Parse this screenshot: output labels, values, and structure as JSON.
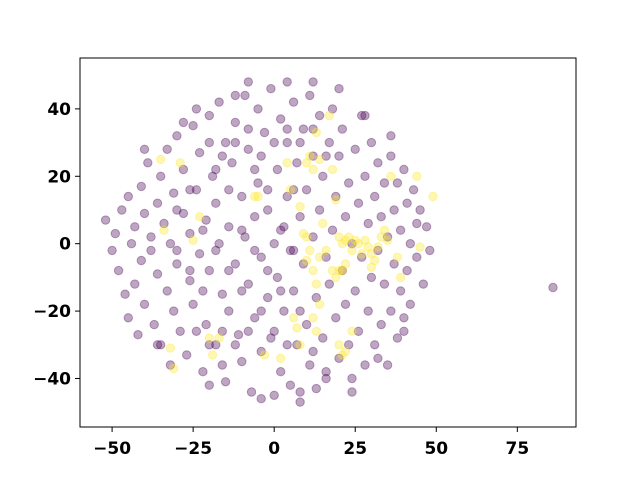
{
  "chart_data": {
    "type": "scatter",
    "title": "",
    "xlabel": "",
    "ylabel": "",
    "xlim": [
      -59.9,
      93.1
    ],
    "ylim": [
      -54.4,
      55.1
    ],
    "x_ticks": [
      -50,
      -25,
      0,
      25,
      50,
      75
    ],
    "y_ticks": [
      -40,
      -20,
      0,
      20,
      40
    ],
    "x_tick_labels": [
      "−50",
      "−25",
      "0",
      "25",
      "50",
      "75"
    ],
    "y_tick_labels": [
      "−40",
      "−20",
      "0",
      "20",
      "40"
    ],
    "grid": false,
    "legend": "none",
    "point_alpha": 0.35,
    "series": [
      {
        "color": "#440154",
        "class": 0,
        "points": [
          [
            -52,
            7
          ],
          [
            -50,
            -2
          ],
          [
            -49,
            3
          ],
          [
            -48,
            -8
          ],
          [
            -47,
            10
          ],
          [
            -46,
            -15
          ],
          [
            -45,
            -22
          ],
          [
            -45,
            14
          ],
          [
            -44,
            0
          ],
          [
            -43,
            5
          ],
          [
            -43,
            -12
          ],
          [
            -42,
            -27
          ],
          [
            -41,
            17
          ],
          [
            -41,
            -5
          ],
          [
            -40,
            9
          ],
          [
            -40,
            -18
          ],
          [
            -39,
            24
          ],
          [
            -38,
            -2
          ],
          [
            -38,
            2
          ],
          [
            -37,
            -24
          ],
          [
            -36,
            12
          ],
          [
            -36,
            -9
          ],
          [
            -35,
            20
          ],
          [
            -35,
            -30
          ],
          [
            -34,
            6
          ],
          [
            -33,
            -14
          ],
          [
            -33,
            28
          ],
          [
            -32,
            0
          ],
          [
            -31,
            -20
          ],
          [
            -31,
            15
          ],
          [
            -30,
            32
          ],
          [
            -30,
            -6
          ],
          [
            -29,
            -26
          ],
          [
            -28,
            9
          ],
          [
            -28,
            22
          ],
          [
            -27,
            -33
          ],
          [
            -26,
            -11
          ],
          [
            -26,
            3
          ],
          [
            -25,
            35
          ],
          [
            -25,
            -18
          ],
          [
            -24,
            16
          ],
          [
            -23,
            -3
          ],
          [
            -23,
            27
          ],
          [
            -22,
            -38
          ],
          [
            -21,
            7
          ],
          [
            -21,
            -24
          ],
          [
            -20,
            38
          ],
          [
            -20,
            -8
          ],
          [
            -19,
            20
          ],
          [
            -18,
            -30
          ],
          [
            -18,
            12
          ],
          [
            -17,
            0
          ],
          [
            -17,
            42
          ],
          [
            -16,
            -15
          ],
          [
            -15,
            30
          ],
          [
            -15,
            -41
          ],
          [
            -14,
            5
          ],
          [
            -14,
            -20
          ],
          [
            -13,
            24
          ],
          [
            -12,
            -6
          ],
          [
            -12,
            36
          ],
          [
            -11,
            -27
          ],
          [
            -10,
            14
          ],
          [
            -10,
            -35
          ],
          [
            -9,
            2
          ],
          [
            -9,
            44
          ],
          [
            -8,
            -12
          ],
          [
            -8,
            28
          ],
          [
            -7,
            -44
          ],
          [
            -6,
            8
          ],
          [
            -6,
            -22
          ],
          [
            -5,
            18
          ],
          [
            -5,
            40
          ],
          [
            -4,
            -4
          ],
          [
            -4,
            -32
          ],
          [
            -3,
            33
          ],
          [
            -2,
            -16
          ],
          [
            -2,
            10
          ],
          [
            -1,
            46
          ],
          [
            -1,
            -28
          ],
          [
            0,
            0
          ],
          [
            0,
            -45
          ],
          [
            1,
            22
          ],
          [
            1,
            -10
          ],
          [
            2,
            37
          ],
          [
            2,
            -38
          ],
          [
            3,
            5
          ],
          [
            3,
            -20
          ],
          [
            4,
            14
          ],
          [
            4,
            30
          ],
          [
            5,
            -2
          ],
          [
            5,
            -42
          ],
          [
            6,
            42
          ],
          [
            6,
            -14
          ],
          [
            7,
            24
          ],
          [
            7,
            -30
          ],
          [
            8,
            8
          ],
          [
            8,
            -47
          ],
          [
            9,
            34
          ],
          [
            9,
            -6
          ],
          [
            10,
            -24
          ],
          [
            10,
            16
          ],
          [
            11,
            44
          ],
          [
            11,
            -36
          ],
          [
            12,
            2
          ],
          [
            12,
            26
          ],
          [
            13,
            -16
          ],
          [
            13,
            -43
          ],
          [
            14,
            38
          ],
          [
            14,
            10
          ],
          [
            15,
            -28
          ],
          [
            15,
            20
          ],
          [
            16,
            -4
          ],
          [
            16,
            -38
          ],
          [
            17,
            30
          ],
          [
            17,
            -12
          ],
          [
            18,
            4
          ],
          [
            18,
            40
          ],
          [
            19,
            -22
          ],
          [
            19,
            14
          ],
          [
            20,
            -34
          ],
          [
            20,
            26
          ],
          [
            21,
            -8
          ],
          [
            21,
            34
          ],
          [
            22,
            -18
          ],
          [
            22,
            8
          ],
          [
            23,
            -30
          ],
          [
            23,
            18
          ],
          [
            24,
            -40
          ],
          [
            24,
            0
          ],
          [
            25,
            28
          ],
          [
            25,
            -14
          ],
          [
            26,
            12
          ],
          [
            26,
            -26
          ],
          [
            27,
            38
          ],
          [
            27,
            -4
          ],
          [
            28,
            20
          ],
          [
            28,
            -36
          ],
          [
            29,
            6
          ],
          [
            29,
            -20
          ],
          [
            30,
            30
          ],
          [
            30,
            -10
          ],
          [
            31,
            14
          ],
          [
            31,
            -30
          ],
          [
            32,
            -2
          ],
          [
            32,
            24
          ],
          [
            33,
            -24
          ],
          [
            33,
            8
          ],
          [
            34,
            18
          ],
          [
            34,
            -12
          ],
          [
            35,
            -36
          ],
          [
            35,
            2
          ],
          [
            36,
            26
          ],
          [
            36,
            -20
          ],
          [
            37,
            10
          ],
          [
            37,
            -6
          ],
          [
            38,
            -28
          ],
          [
            38,
            18
          ],
          [
            39,
            -14
          ],
          [
            39,
            4
          ],
          [
            40,
            22
          ],
          [
            40,
            -22
          ],
          [
            41,
            -8
          ],
          [
            41,
            12
          ],
          [
            42,
            0
          ],
          [
            42,
            -18
          ],
          [
            43,
            16
          ],
          [
            44,
            -4
          ],
          [
            44,
            6
          ],
          [
            45,
            10
          ],
          [
            46,
            -12
          ],
          [
            47,
            5
          ],
          [
            48,
            -2
          ],
          [
            -40,
            28
          ],
          [
            -36,
            -30
          ],
          [
            -32,
            -36
          ],
          [
            -28,
            36
          ],
          [
            -24,
            40
          ],
          [
            -20,
            -42
          ],
          [
            -16,
            -36
          ],
          [
            -12,
            44
          ],
          [
            -8,
            48
          ],
          [
            -4,
            -46
          ],
          [
            4,
            48
          ],
          [
            8,
            -44
          ],
          [
            12,
            48
          ],
          [
            16,
            -40
          ],
          [
            20,
            46
          ],
          [
            24,
            -44
          ],
          [
            28,
            38
          ],
          [
            32,
            -34
          ],
          [
            36,
            32
          ],
          [
            40,
            -26
          ],
          [
            -30,
            -2
          ],
          [
            -26,
            -8
          ],
          [
            -22,
            -14
          ],
          [
            -18,
            -2
          ],
          [
            -14,
            -8
          ],
          [
            -10,
            -14
          ],
          [
            -6,
            -2
          ],
          [
            -2,
            -8
          ],
          [
            2,
            -14
          ],
          [
            6,
            -2
          ],
          [
            -30,
            10
          ],
          [
            -26,
            16
          ],
          [
            -22,
            4
          ],
          [
            -18,
            22
          ],
          [
            -14,
            16
          ],
          [
            -10,
            4
          ],
          [
            -6,
            22
          ],
          [
            -2,
            16
          ],
          [
            2,
            4
          ],
          [
            6,
            16
          ],
          [
            -24,
            -26
          ],
          [
            -20,
            -30
          ],
          [
            -16,
            -26
          ],
          [
            -12,
            -30
          ],
          [
            -8,
            -26
          ],
          [
            -4,
            -20
          ],
          [
            0,
            -26
          ],
          [
            4,
            -30
          ],
          [
            8,
            -20
          ],
          [
            12,
            -32
          ],
          [
            -20,
            30
          ],
          [
            -16,
            26
          ],
          [
            -12,
            30
          ],
          [
            -8,
            34
          ],
          [
            -4,
            26
          ],
          [
            0,
            30
          ],
          [
            4,
            34
          ],
          [
            8,
            30
          ],
          [
            12,
            34
          ],
          [
            16,
            26
          ],
          [
            86,
            -13
          ]
        ]
      },
      {
        "color": "#fde725",
        "class": 1,
        "points": [
          [
            -35,
            25
          ],
          [
            -34,
            4
          ],
          [
            -25,
            1
          ],
          [
            -23,
            8
          ],
          [
            -20,
            -28
          ],
          [
            -19,
            -33
          ],
          [
            -17,
            -28
          ],
          [
            -31,
            -37
          ],
          [
            -32,
            -31
          ],
          [
            -6,
            14
          ],
          [
            -5,
            14
          ],
          [
            4,
            24
          ],
          [
            5,
            16
          ],
          [
            10,
            24
          ],
          [
            11,
            26
          ],
          [
            12,
            22
          ],
          [
            13,
            33
          ],
          [
            14,
            25
          ],
          [
            18,
            22
          ],
          [
            19,
            13
          ],
          [
            10,
            2
          ],
          [
            11,
            -2
          ],
          [
            12,
            -8
          ],
          [
            13,
            -12
          ],
          [
            14,
            -4
          ],
          [
            15,
            6
          ],
          [
            16,
            -2
          ],
          [
            18,
            -8
          ],
          [
            19,
            -10
          ],
          [
            20,
            -8
          ],
          [
            21,
            -8
          ],
          [
            22,
            -6
          ],
          [
            20,
            2
          ],
          [
            21,
            0
          ],
          [
            22,
            1
          ],
          [
            23,
            2
          ],
          [
            24,
            -2
          ],
          [
            25,
            1
          ],
          [
            26,
            0
          ],
          [
            27,
            -3
          ],
          [
            28,
            1
          ],
          [
            29,
            -1
          ],
          [
            30,
            -3
          ],
          [
            12,
            -22
          ],
          [
            13,
            -26
          ],
          [
            14,
            -18
          ],
          [
            20,
            -30
          ],
          [
            21,
            -33
          ],
          [
            22,
            -32
          ],
          [
            24,
            -26
          ],
          [
            36,
            20
          ],
          [
            38,
            -4
          ],
          [
            39,
            -10
          ],
          [
            44,
            20
          ],
          [
            45,
            -1
          ],
          [
            49,
            14
          ],
          [
            17,
            38
          ],
          [
            -3,
            -33
          ],
          [
            2,
            -34
          ],
          [
            -29,
            24
          ],
          [
            8,
            -30
          ],
          [
            6,
            -22
          ],
          [
            8,
            11
          ],
          [
            9,
            3
          ],
          [
            10,
            -5
          ],
          [
            7,
            -25
          ],
          [
            30,
            -7
          ],
          [
            31,
            -5
          ],
          [
            32,
            -1
          ],
          [
            33,
            2
          ],
          [
            34,
            4
          ],
          [
            35,
            1
          ]
        ]
      }
    ]
  }
}
